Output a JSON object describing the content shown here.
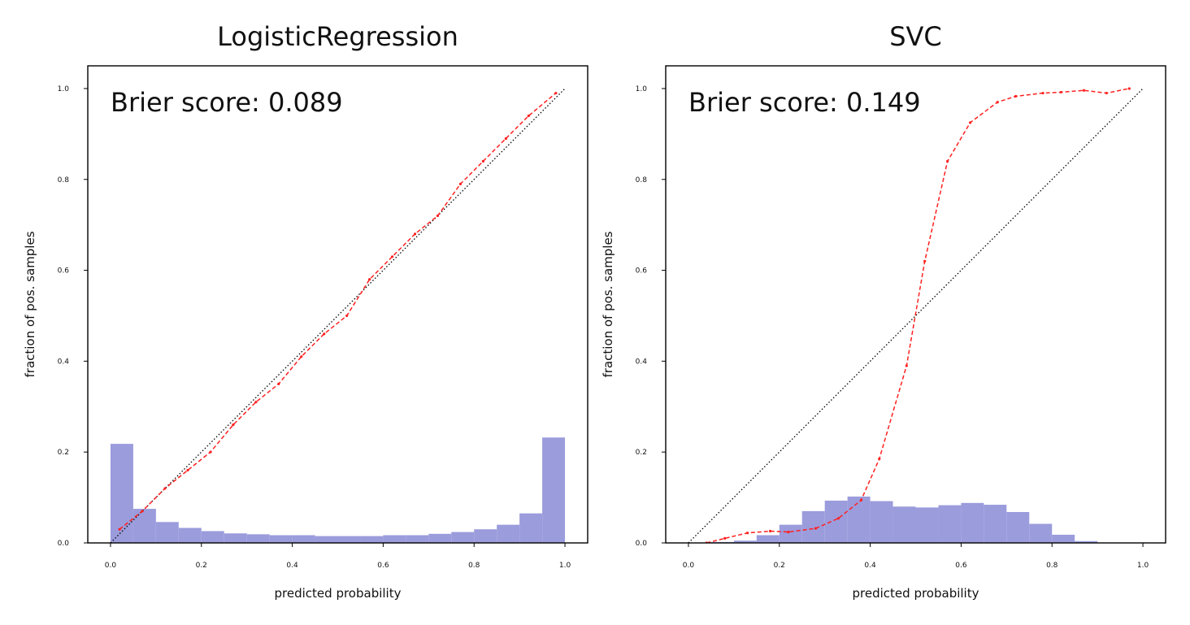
{
  "chart_data": [
    {
      "type": "line",
      "title": "LogisticRegression",
      "xlabel": "predicted probability",
      "ylabel": "fraction of pos. samples",
      "annotation": "Brier score: 0.089",
      "xlim": [
        -0.05,
        1.05
      ],
      "ylim": [
        0,
        1.05
      ],
      "xticks": [
        "0.0",
        "0.2",
        "0.4",
        "0.6",
        "0.8",
        "1.0"
      ],
      "yticks": [
        "0.0",
        "0.2",
        "0.4",
        "0.6",
        "0.8",
        "1.0"
      ],
      "grid": false,
      "reference_line": {
        "x": [
          0,
          1
        ],
        "y": [
          0,
          1
        ],
        "color": "#000000",
        "style": "dotted"
      },
      "calibration_curve": {
        "color": "#ff2020",
        "x": [
          0.02,
          0.07,
          0.12,
          0.17,
          0.22,
          0.27,
          0.32,
          0.37,
          0.42,
          0.47,
          0.52,
          0.57,
          0.62,
          0.67,
          0.72,
          0.77,
          0.82,
          0.87,
          0.92,
          0.98
        ],
        "y": [
          0.03,
          0.07,
          0.12,
          0.16,
          0.2,
          0.26,
          0.31,
          0.35,
          0.41,
          0.46,
          0.5,
          0.58,
          0.63,
          0.68,
          0.72,
          0.79,
          0.84,
          0.89,
          0.94,
          0.99
        ]
      },
      "histogram": {
        "color": "#9b9cdc",
        "bin_edges": [
          0.0,
          0.05,
          0.1,
          0.15,
          0.2,
          0.25,
          0.3,
          0.35,
          0.4,
          0.45,
          0.5,
          0.55,
          0.6,
          0.65,
          0.7,
          0.75,
          0.8,
          0.85,
          0.9,
          0.95,
          1.0
        ],
        "heights": [
          0.218,
          0.075,
          0.046,
          0.033,
          0.026,
          0.021,
          0.019,
          0.017,
          0.017,
          0.015,
          0.015,
          0.015,
          0.017,
          0.017,
          0.02,
          0.024,
          0.03,
          0.04,
          0.065,
          0.232
        ]
      }
    },
    {
      "type": "line",
      "title": "SVC",
      "xlabel": "predicted probability",
      "ylabel": "fraction of pos. samples",
      "annotation": "Brier score: 0.149",
      "xlim": [
        -0.05,
        1.05
      ],
      "ylim": [
        0,
        1.05
      ],
      "xticks": [
        "0.0",
        "0.2",
        "0.4",
        "0.6",
        "0.8",
        "1.0"
      ],
      "yticks": [
        "0.0",
        "0.2",
        "0.4",
        "0.6",
        "0.8",
        "1.0"
      ],
      "grid": false,
      "reference_line": {
        "x": [
          0,
          1
        ],
        "y": [
          0,
          1
        ],
        "color": "#000000",
        "style": "dotted"
      },
      "calibration_curve": {
        "color": "#ff2020",
        "x": [
          0.04,
          0.08,
          0.13,
          0.18,
          0.22,
          0.28,
          0.33,
          0.38,
          0.42,
          0.48,
          0.52,
          0.57,
          0.62,
          0.68,
          0.72,
          0.78,
          0.82,
          0.87,
          0.92,
          0.97
        ],
        "y": [
          0.0,
          0.01,
          0.022,
          0.026,
          0.024,
          0.032,
          0.054,
          0.094,
          0.185,
          0.39,
          0.62,
          0.84,
          0.925,
          0.97,
          0.983,
          0.99,
          0.992,
          0.996,
          0.99,
          1.0
        ]
      },
      "histogram": {
        "color": "#9b9cdc",
        "bin_edges": [
          0.0,
          0.05,
          0.1,
          0.15,
          0.2,
          0.25,
          0.3,
          0.35,
          0.4,
          0.45,
          0.5,
          0.55,
          0.6,
          0.65,
          0.7,
          0.75,
          0.8,
          0.85,
          0.9,
          0.95,
          1.0
        ],
        "heights": [
          0.0,
          0.002,
          0.005,
          0.017,
          0.04,
          0.07,
          0.093,
          0.102,
          0.092,
          0.08,
          0.078,
          0.083,
          0.088,
          0.084,
          0.068,
          0.042,
          0.018,
          0.004,
          0.0,
          0.0
        ]
      }
    }
  ]
}
